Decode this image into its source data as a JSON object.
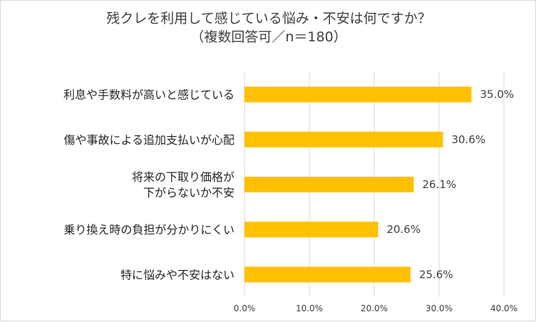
{
  "chart_data": {
    "type": "bar",
    "orientation": "horizontal",
    "title": "残クレを利用して感じている悩み・不安は何ですか？",
    "subtitle": "（複数回答可／n＝180）",
    "categories": [
      "利息や手数料が高いと感じている",
      "傷や事故による追加支払いが心配",
      [
        "将来の下取り価格が",
        "下がらないか不安"
      ],
      "乗り換え時の負担が分かりにくい",
      "特に悩みや不安はない"
    ],
    "values": [
      35.0,
      30.6,
      26.1,
      20.6,
      25.6
    ],
    "value_labels": [
      "35.0%",
      "30.6%",
      "26.1%",
      "20.6%",
      "25.6%"
    ],
    "xlim": [
      0,
      40
    ],
    "x_ticks": [
      "0.0%",
      "10.0%",
      "20.0%",
      "30.0%",
      "40.0%"
    ],
    "grid": true,
    "bar_color": "#FFC000",
    "grid_color": "#d9d9d9"
  }
}
